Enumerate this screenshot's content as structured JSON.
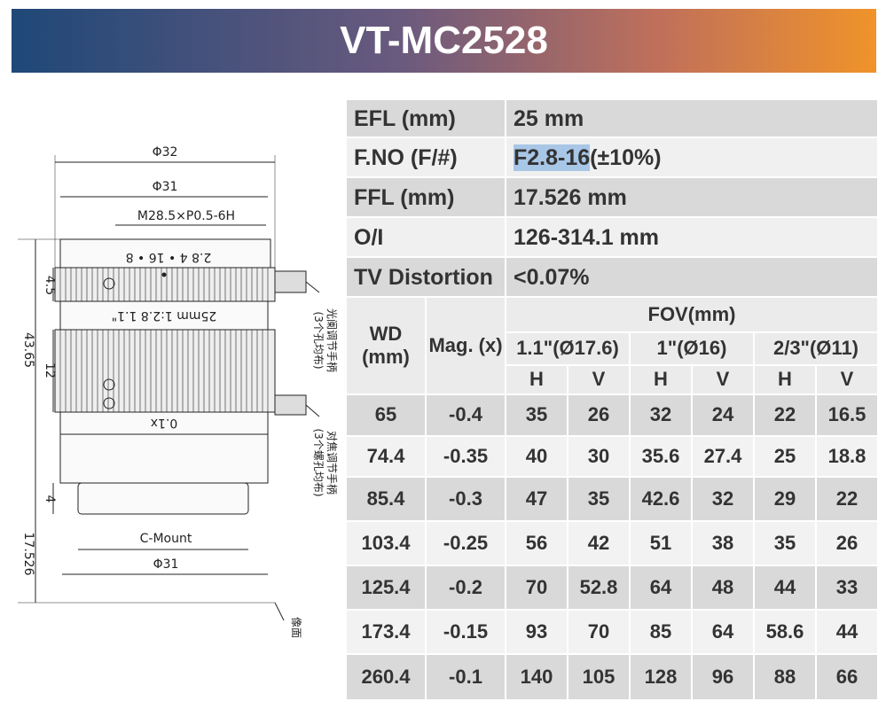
{
  "header": {
    "title": "VT-MC2528"
  },
  "specs": [
    {
      "label": "EFL (mm)",
      "value": "25 mm"
    },
    {
      "label": "F.NO (F/#)",
      "value": "F2.8-16",
      "note": "(±10%)"
    },
    {
      "label": "FFL (mm)",
      "value": "17.526 mm"
    },
    {
      "label": "O/I",
      "value": "126-314.1 mm"
    },
    {
      "label": "TV Distortion",
      "value": "<0.07%"
    }
  ],
  "fov_table": {
    "wd_header": "WD (mm)",
    "mag_header": "Mag. (x)",
    "group_header": "FOV(mm)",
    "sensors": [
      "1.1\"(Ø17.6)",
      "1\"(Ø16)",
      "2/3\"(Ø11)"
    ],
    "axes": [
      "H",
      "V",
      "H",
      "V",
      "H",
      "V"
    ],
    "rows": [
      [
        65,
        -0.4,
        35,
        26,
        32,
        24,
        22,
        16.5
      ],
      [
        74.4,
        -0.35,
        40,
        30,
        35.6,
        27.4,
        25,
        18.8
      ],
      [
        85.4,
        -0.3,
        47,
        35,
        42.6,
        32,
        29,
        22
      ],
      [
        103.4,
        -0.25,
        56,
        42,
        51,
        38,
        35,
        26
      ],
      [
        125.4,
        -0.2,
        70,
        52.8,
        64,
        48,
        44,
        33
      ],
      [
        173.4,
        -0.15,
        93,
        70,
        85,
        64,
        58.6,
        44
      ],
      [
        260.4,
        -0.1,
        140,
        105,
        128,
        96,
        88,
        66
      ]
    ]
  },
  "drawing": {
    "outer_dia": "Φ32",
    "body_dia": "Φ31",
    "thread": "M28.5×P0.5-6H",
    "aperture_scale": "2.8    4    •    16 • 8",
    "lens_marking": "25mm  1:2.8  1.1\"",
    "mag_marking": "0.1x",
    "ring_height": "4.5",
    "total_length": "43.65",
    "focus_ring_height": "12",
    "mount_height": "4",
    "flange": "17.526",
    "mount": "C-Mount",
    "mount_dia": "Φ31",
    "iris_handle": "光阑调节手柄",
    "iris_handle_note": "(3个孔均布)",
    "focus_handle": "对焦调节手柄",
    "focus_handle_note": "(3个螺孔均布)",
    "image_plane": "像面"
  }
}
